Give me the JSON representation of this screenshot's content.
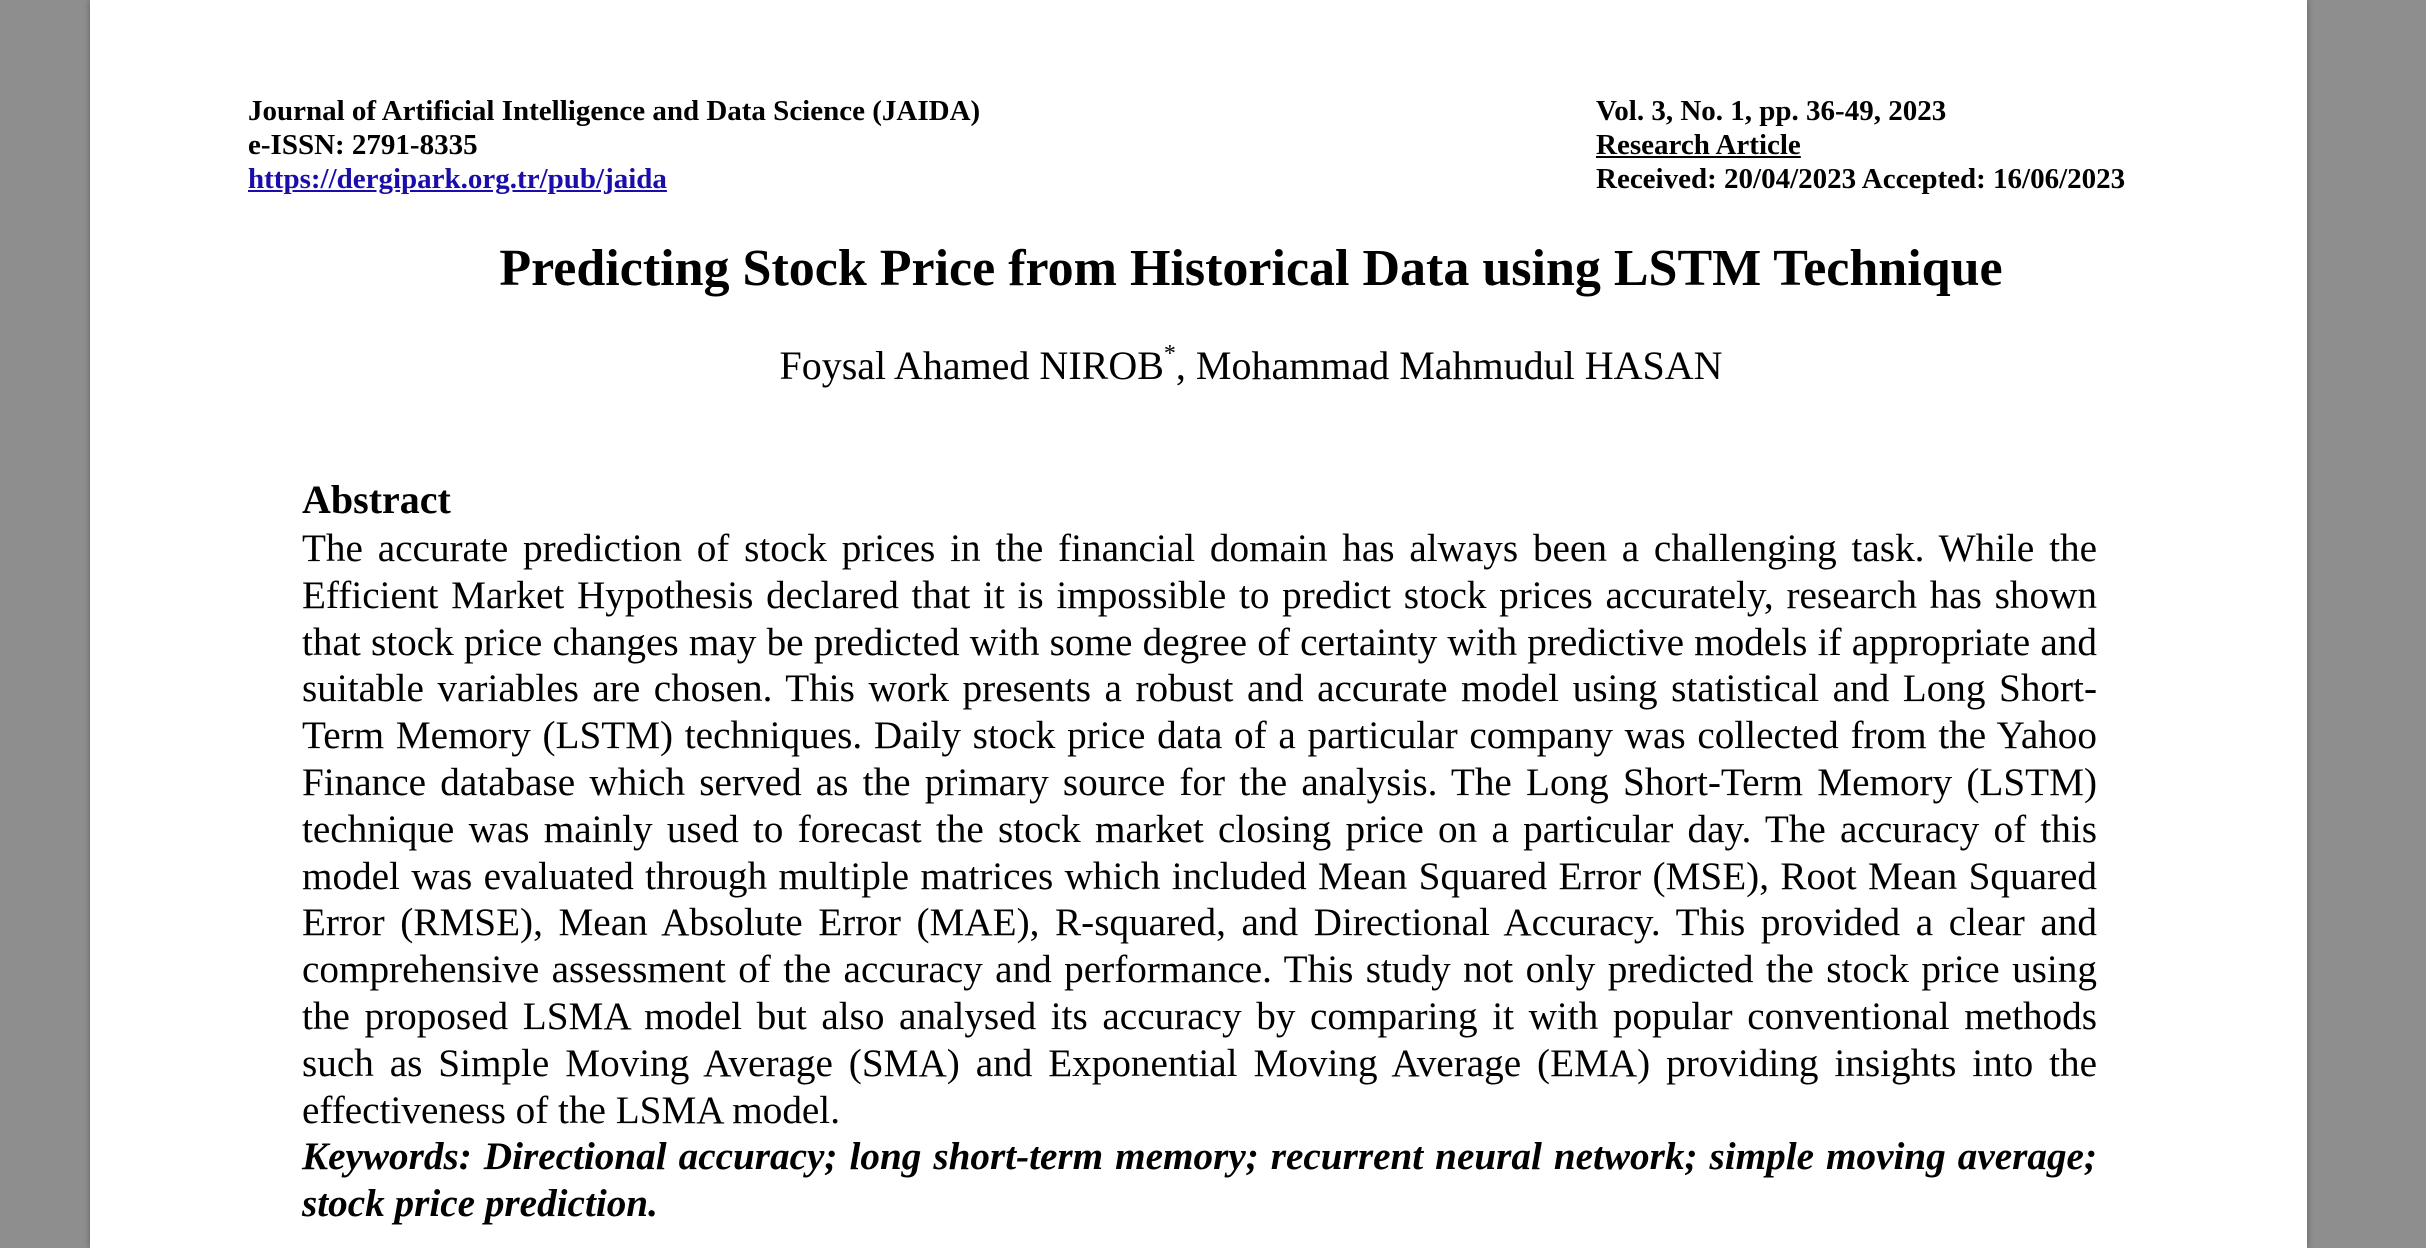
{
  "header": {
    "journal_name": "Journal of Artificial Intelligence and Data Science (JAIDA)",
    "issn": "e-ISSN: 2791-8335",
    "url": "https://dergipark.org.tr/pub/jaida",
    "volume": "Vol. 3, No. 1, pp. 36-49, 2023",
    "article_type": "Research Article",
    "dates": "Received: 20/04/2023 Accepted: 16/06/2023"
  },
  "paper": {
    "title": "Predicting Stock Price from Historical Data using LSTM Technique",
    "author1": "Foysal Ahamed NIROB",
    "author1_mark": "*",
    "author2": ", Mohammad Mahmudul HASAN"
  },
  "abstract": {
    "heading": "Abstract",
    "text": "The accurate prediction of stock prices in the financial domain has always been a challenging task. While the Efficient Market Hypothesis declared that it is impossible to predict stock prices accurately, research has shown that stock price changes may be predicted with some degree of certainty with predictive models if appropriate and suitable variables are chosen. This work presents a robust and accurate model using statistical and Long Short-Term Memory (LSTM) techniques. Daily stock price data of a particular company was collected from the Yahoo Finance database which served as the primary source for the analysis. The Long Short-Term Memory (LSTM) technique was mainly used to forecast the stock market closing price on a particular day. The accuracy of this model was evaluated through multiple matrices which included Mean Squared Error (MSE), Root Mean Squared Error (RMSE), Mean Absolute Error (MAE), R-squared, and Directional Accuracy. This provided a clear and comprehensive assessment of the accuracy and performance. This study not only predicted the stock price using the proposed LSMA model but also analysed its accuracy by comparing it with popular conventional methods such as Simple Moving Average (SMA) and Exponential Moving Average (EMA) providing insights into the effectiveness of the LSMA model.",
    "keywords": "Keywords: Directional accuracy; long short-term memory; recurrent neural network; simple moving average; stock price prediction."
  },
  "colors": {
    "viewer_background": "#8e8e8e",
    "page_background": "#ffffff",
    "link": "#1a0dab"
  }
}
